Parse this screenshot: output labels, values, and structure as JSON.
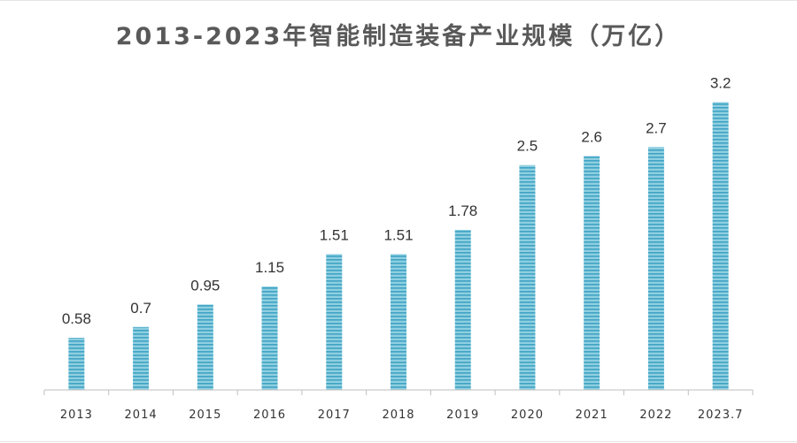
{
  "chart_data": {
    "type": "bar",
    "title": "2013-2023年智能制造装备产业规模（万亿）",
    "xlabel": "",
    "ylabel": "",
    "categories": [
      "2013",
      "2014",
      "2015",
      "2016",
      "2017",
      "2018",
      "2019",
      "2020",
      "2021",
      "2022",
      "2023.7"
    ],
    "values": [
      0.58,
      0.7,
      0.95,
      1.15,
      1.51,
      1.51,
      1.78,
      2.5,
      2.6,
      2.7,
      3.2
    ],
    "value_labels": [
      "0.58",
      "0.7",
      "0.95",
      "1.15",
      "1.51",
      "1.51",
      "1.78",
      "2.5",
      "2.6",
      "2.7",
      "3.2"
    ],
    "ylim": [
      0,
      3.5
    ],
    "grid": false,
    "legend": "none",
    "colors": {
      "bar": "#8fcfe0",
      "bar_stripe": "#3fa3c4",
      "axis": "#bfbfbf"
    }
  }
}
